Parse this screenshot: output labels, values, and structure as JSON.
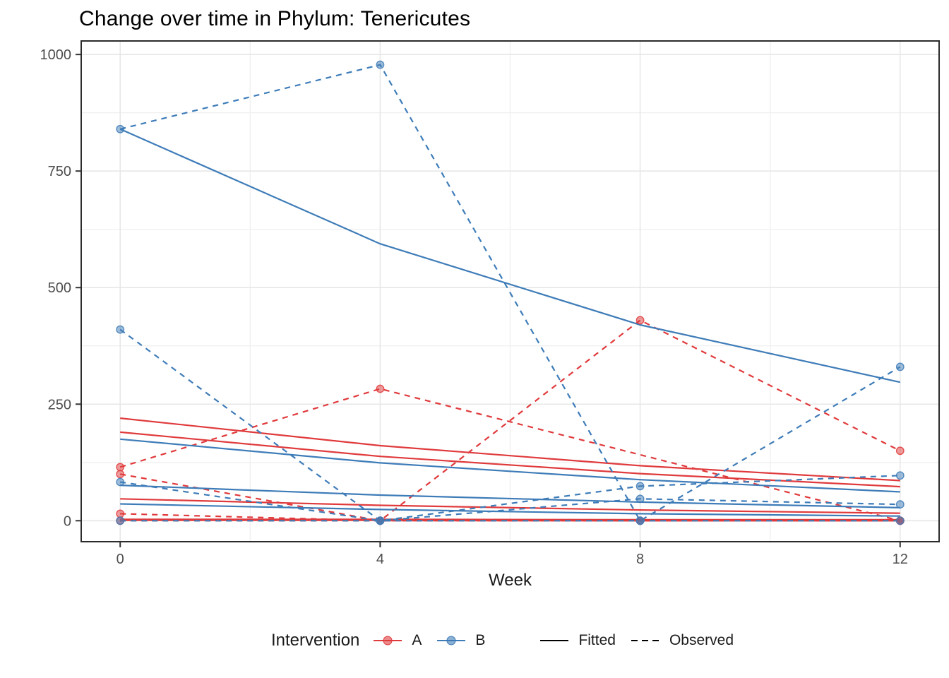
{
  "title": "Change over time in Phylum: Tenericutes",
  "legend": {
    "title": "Intervention",
    "items": [
      {
        "label": "A",
        "kind": "color",
        "color_key": "A"
      },
      {
        "label": "B",
        "kind": "color",
        "color_key": "B"
      },
      {
        "label": "Fitted",
        "kind": "linetype",
        "linetype": "solid"
      },
      {
        "label": "Observed",
        "kind": "linetype",
        "linetype": "dashed"
      }
    ]
  },
  "colors": {
    "A": "#E03A3C",
    "B": "#3E7CB8",
    "linetype_key": "#000000",
    "grid_major": "#E7E7E7",
    "grid_minor": "#F0F0F0",
    "panel_border": "#2B2B2B",
    "tick_mark": "#333333",
    "tick_text": "#4D4D4D"
  },
  "chart_data": {
    "type": "line",
    "title": "Change over time in Phylum: Tenericutes",
    "xlabel": "Week",
    "ylabel": "",
    "x_ticks": [
      0,
      4,
      8,
      12
    ],
    "x_minor": [
      2,
      6,
      10
    ],
    "y_ticks": [
      0,
      250,
      500,
      750,
      1000
    ],
    "y_minor": [
      125,
      375,
      625,
      875
    ],
    "xlim": [
      -0.6,
      12.6
    ],
    "ylim": [
      -45,
      1029
    ],
    "grid": true,
    "legend_position": "bottom",
    "series": [
      {
        "id": "A-subject1-fitted",
        "intervention": "A",
        "linetype": "fitted",
        "x": [
          0,
          4,
          8,
          12
        ],
        "y": [
          220,
          161,
          118,
          86
        ]
      },
      {
        "id": "A-subject1-observed",
        "intervention": "A",
        "linetype": "observed",
        "x": [
          0,
          4,
          12
        ],
        "y": [
          115,
          283,
          0
        ]
      },
      {
        "id": "A-subject2-fitted",
        "intervention": "A",
        "linetype": "fitted",
        "x": [
          0,
          4,
          8,
          12
        ],
        "y": [
          190,
          138,
          101,
          73
        ]
      },
      {
        "id": "A-subject2-observed",
        "intervention": "A",
        "linetype": "observed",
        "x": [
          0,
          4,
          8,
          12
        ],
        "y": [
          100,
          0,
          0,
          0
        ]
      },
      {
        "id": "A-subject3-fitted",
        "intervention": "A",
        "linetype": "fitted",
        "x": [
          0,
          4,
          8,
          12
        ],
        "y": [
          47,
          33,
          23,
          16
        ]
      },
      {
        "id": "A-subject3-observed",
        "intervention": "A",
        "linetype": "observed",
        "x": [
          0,
          4,
          8,
          12
        ],
        "y": [
          15,
          0,
          0,
          0
        ]
      },
      {
        "id": "A-subject4-fitted",
        "intervention": "A",
        "linetype": "fitted",
        "x": [
          0,
          4,
          8,
          12
        ],
        "y": [
          2,
          2,
          1,
          1
        ],
        "thick": true
      },
      {
        "id": "A-subject4-observed",
        "intervention": "A",
        "linetype": "observed",
        "x": [
          0,
          4,
          8,
          12
        ],
        "y": [
          0,
          0,
          430,
          150
        ]
      },
      {
        "id": "B-subject1-fitted",
        "intervention": "B",
        "linetype": "fitted",
        "x": [
          0,
          4,
          8,
          12
        ],
        "y": [
          840,
          594,
          420,
          297
        ]
      },
      {
        "id": "B-subject1-observed",
        "intervention": "B",
        "linetype": "observed",
        "x": [
          0,
          4,
          8,
          12
        ],
        "y": [
          840,
          978,
          0,
          330
        ]
      },
      {
        "id": "B-subject2-fitted",
        "intervention": "B",
        "linetype": "fitted",
        "x": [
          0,
          4,
          8,
          12
        ],
        "y": [
          175,
          124,
          88,
          62
        ]
      },
      {
        "id": "B-subject2-observed",
        "intervention": "B",
        "linetype": "observed",
        "x": [
          0,
          4,
          8,
          12
        ],
        "y": [
          410,
          0,
          74,
          97
        ]
      },
      {
        "id": "B-subject3-fitted",
        "intervention": "B",
        "linetype": "fitted",
        "x": [
          0,
          4,
          8,
          12
        ],
        "y": [
          76,
          55,
          40,
          28
        ]
      },
      {
        "id": "B-subject3-observed",
        "intervention": "B",
        "linetype": "observed",
        "x": [
          0,
          4,
          8,
          12
        ],
        "y": [
          83,
          0,
          47,
          35
        ]
      },
      {
        "id": "B-subject4-fitted",
        "intervention": "B",
        "linetype": "fitted",
        "x": [
          0,
          4,
          8,
          12
        ],
        "y": [
          36,
          24,
          15,
          10
        ]
      },
      {
        "id": "B-subject4-observed",
        "intervention": "B",
        "linetype": "observed",
        "x": [
          0,
          4,
          8,
          12
        ],
        "y": [
          0,
          0,
          0,
          0
        ]
      }
    ]
  }
}
